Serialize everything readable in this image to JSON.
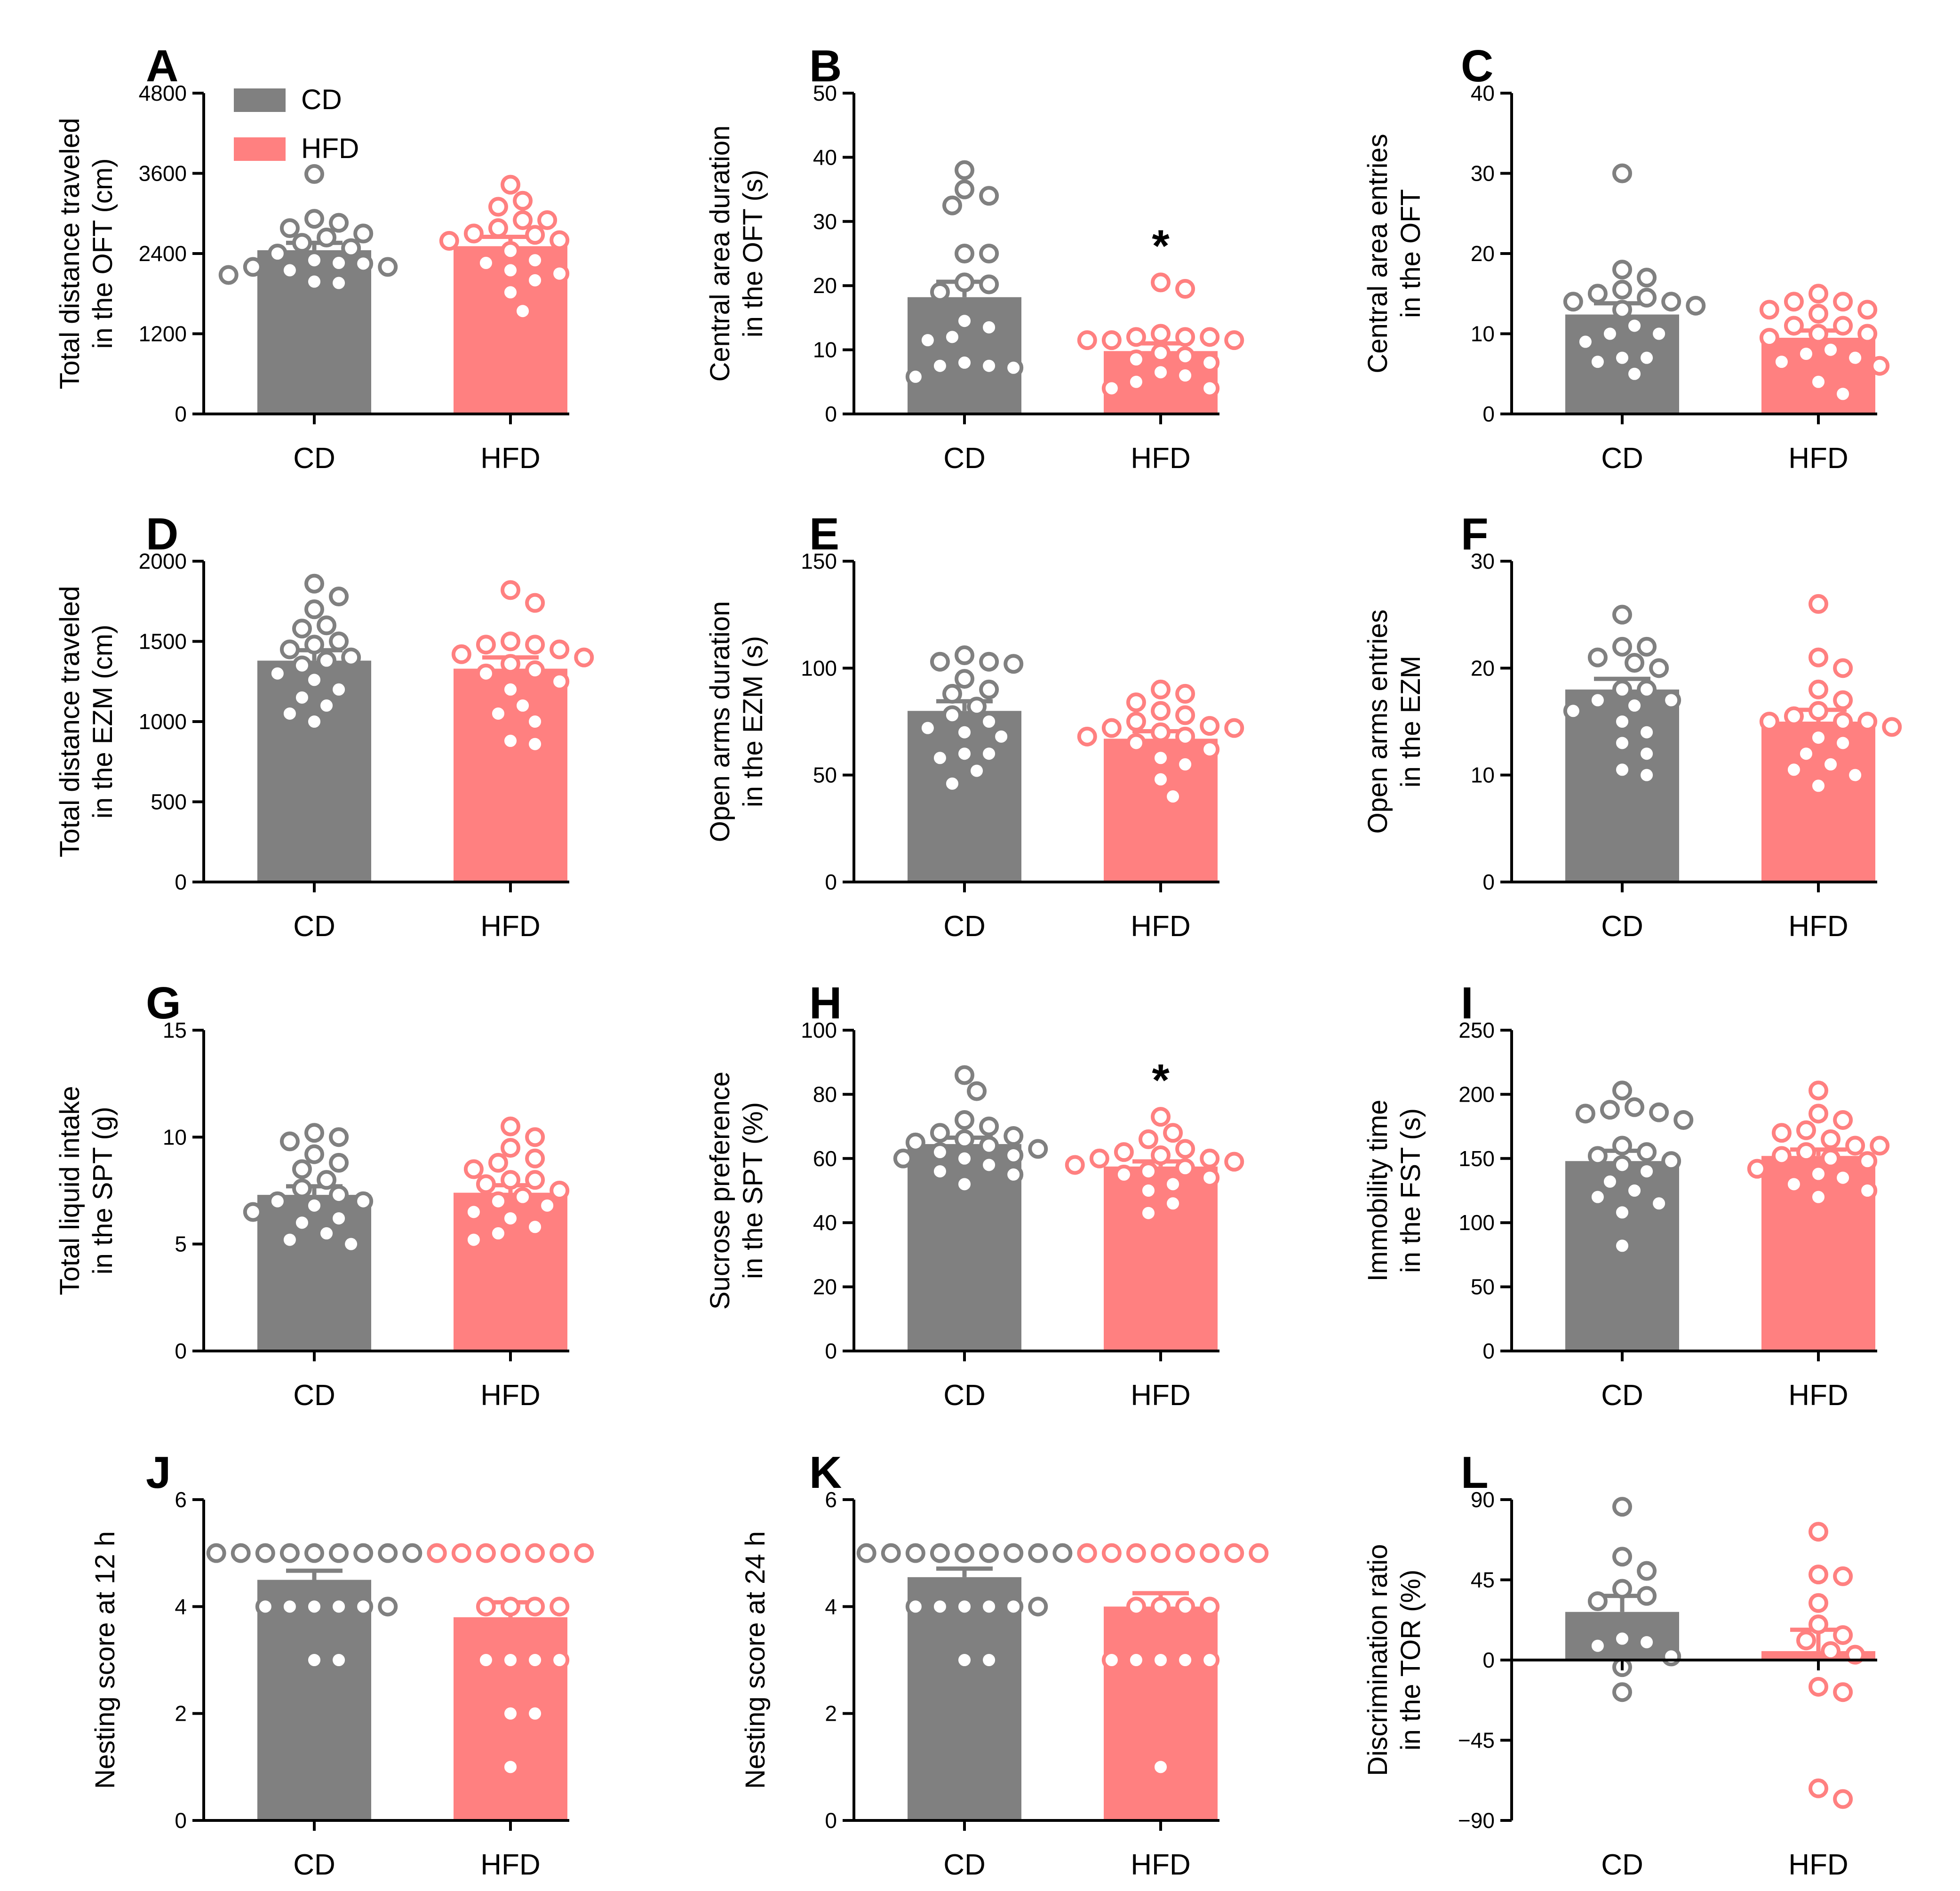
{
  "colors": {
    "cd": "#808080",
    "hfd": "#FF8080",
    "axis": "#000000"
  },
  "legend": [
    {
      "label": "CD",
      "color": "#808080"
    },
    {
      "label": "HFD",
      "color": "#FF8080"
    }
  ],
  "chart_data": [
    {
      "panel": "A",
      "type": "bar",
      "ylabel": [
        "Total distance traveled",
        "in the OFT (cm)"
      ],
      "ylim": [
        0,
        4800
      ],
      "ticks": [
        0,
        1200,
        2400,
        3600,
        4800
      ],
      "categories": [
        "CD",
        "HFD"
      ],
      "series": [
        {
          "name": "CD",
          "mean": 2450,
          "sem": 110,
          "points": [
            3590,
            2920,
            2780,
            2860,
            2640,
            2480,
            2560,
            2700,
            2400,
            2300,
            2200,
            2260,
            2150,
            2250,
            2080,
            1960,
            1980,
            2200
          ]
        },
        {
          "name": "HFD",
          "mean": 2510,
          "sem": 140,
          "points": [
            3430,
            3100,
            3190,
            2900,
            2780,
            2900,
            2600,
            2700,
            2590,
            2440,
            2300,
            2260,
            2150,
            2100,
            2000,
            1820,
            1540,
            2680
          ]
        }
      ],
      "significance": []
    },
    {
      "panel": "B",
      "type": "bar",
      "ylabel": [
        "Central area duration",
        "in the OFT (s)"
      ],
      "ylim": [
        0,
        50
      ],
      "ticks": [
        0,
        10,
        20,
        30,
        40,
        50
      ],
      "categories": [
        "CD",
        "HFD"
      ],
      "series": [
        {
          "name": "CD",
          "mean": 18.2,
          "sem": 2.4,
          "points": [
            38,
            34,
            35,
            32.5,
            25,
            25,
            20.5,
            20.2,
            19,
            14.5,
            13.5,
            12,
            11.5,
            8,
            7.5,
            7.2,
            7.5,
            5.8
          ]
        },
        {
          "name": "HFD",
          "mean": 9.8,
          "sem": 1.2,
          "points": [
            20.5,
            19.5,
            12,
            12,
            11.5,
            11.5,
            12,
            11.5,
            12.5,
            9.5,
            9,
            8.5,
            8,
            6.5,
            6,
            5,
            4,
            4
          ]
        }
      ],
      "significance": [
        "HFD"
      ]
    },
    {
      "panel": "C",
      "type": "bar",
      "ylabel": [
        "Central area entries",
        "in the OFT"
      ],
      "ylim": [
        0,
        40
      ],
      "ticks": [
        0,
        10,
        20,
        30,
        40
      ],
      "categories": [
        "CD",
        "HFD"
      ],
      "series": [
        {
          "name": "CD",
          "mean": 12.4,
          "sem": 1.4,
          "points": [
            30,
            18,
            17,
            15.5,
            15,
            14.5,
            14,
            14,
            13.5,
            13,
            11,
            10,
            10,
            9,
            7,
            7,
            6.5,
            5
          ]
        },
        {
          "name": "HFD",
          "mean": 9.5,
          "sem": 0.9,
          "points": [
            15,
            14,
            14,
            13,
            13,
            12.5,
            11,
            11,
            10,
            10,
            9.5,
            8,
            7.5,
            7,
            6.5,
            6,
            4,
            2.5
          ]
        }
      ],
      "significance": []
    },
    {
      "panel": "D",
      "type": "bar",
      "ylabel": [
        "Total distance traveled",
        "in the EZM (cm)"
      ],
      "ylim": [
        0,
        2000
      ],
      "ticks": [
        0,
        500,
        1000,
        1500,
        2000
      ],
      "categories": [
        "CD",
        "HFD"
      ],
      "series": [
        {
          "name": "CD",
          "mean": 1380,
          "sem": 65,
          "points": [
            1860,
            1780,
            1700,
            1600,
            1580,
            1500,
            1450,
            1480,
            1400,
            1380,
            1350,
            1300,
            1260,
            1200,
            1150,
            1050,
            1000,
            1100
          ]
        },
        {
          "name": "HFD",
          "mean": 1330,
          "sem": 70,
          "points": [
            1820,
            1740,
            1500,
            1480,
            1450,
            1420,
            1400,
            1480,
            1360,
            1320,
            1300,
            1250,
            1200,
            1100,
            1050,
            1000,
            880,
            860
          ]
        }
      ],
      "significance": []
    },
    {
      "panel": "E",
      "type": "bar",
      "ylabel": [
        "Open arms duration",
        "in the EZM (s)"
      ],
      "ylim": [
        0,
        150
      ],
      "ticks": [
        0,
        50,
        100,
        150
      ],
      "categories": [
        "CD",
        "HFD"
      ],
      "series": [
        {
          "name": "CD",
          "mean": 80,
          "sem": 4.5,
          "points": [
            106,
            103,
            103,
            102,
            95,
            90,
            88,
            82,
            78,
            75,
            72,
            70,
            68,
            60,
            58,
            52,
            46,
            60
          ]
        },
        {
          "name": "HFD",
          "mean": 67,
          "sem": 3.5,
          "points": [
            90,
            88,
            84,
            80,
            78,
            75,
            73,
            72,
            72,
            70,
            68,
            68,
            65,
            62,
            58,
            55,
            48,
            40
          ]
        }
      ],
      "significance": []
    },
    {
      "panel": "F",
      "type": "bar",
      "ylabel": [
        "Open arms entries",
        "in the EZM"
      ],
      "ylim": [
        0,
        30
      ],
      "ticks": [
        0,
        10,
        20,
        30
      ],
      "categories": [
        "CD",
        "HFD"
      ],
      "series": [
        {
          "name": "CD",
          "mean": 18,
          "sem": 1.0,
          "points": [
            25,
            22,
            22,
            21,
            20.5,
            20,
            18,
            18,
            17,
            17,
            16.5,
            16,
            15,
            14,
            12,
            10.5,
            10,
            13
          ]
        },
        {
          "name": "HFD",
          "mean": 15,
          "sem": 1.1,
          "points": [
            26,
            21,
            20,
            18,
            17,
            16,
            15.5,
            15,
            15,
            15,
            14.5,
            13,
            12,
            11,
            10.5,
            10,
            9,
            13.5
          ]
        }
      ],
      "significance": []
    },
    {
      "panel": "G",
      "type": "bar",
      "ylabel": [
        "Total liquid intake",
        "in the SPT (g)"
      ],
      "ylim": [
        0,
        15
      ],
      "ticks": [
        0,
        5,
        10,
        15
      ],
      "categories": [
        "CD",
        "HFD"
      ],
      "series": [
        {
          "name": "CD",
          "mean": 7.3,
          "sem": 0.4,
          "points": [
            10.2,
            10,
            9.8,
            9.2,
            8.5,
            8,
            7.6,
            7.3,
            7,
            7,
            6.8,
            6.5,
            6.2,
            6,
            5.5,
            5.2,
            5,
            8.8
          ]
        },
        {
          "name": "HFD",
          "mean": 7.4,
          "sem": 0.35,
          "points": [
            10.5,
            10,
            9.5,
            9,
            8.8,
            8.5,
            8,
            8,
            7.8,
            7.5,
            7.2,
            7,
            6.8,
            6.5,
            6.2,
            5.8,
            5.5,
            5.2
          ]
        }
      ],
      "significance": []
    },
    {
      "panel": "H",
      "type": "bar",
      "ylabel": [
        "Sucrose preference",
        "in the SPT (%)"
      ],
      "ylim": [
        0,
        100
      ],
      "ticks": [
        0,
        20,
        40,
        60,
        80,
        100
      ],
      "categories": [
        "CD",
        "HFD"
      ],
      "series": [
        {
          "name": "CD",
          "mean": 64.5,
          "sem": 2.0,
          "points": [
            86,
            81,
            72,
            70,
            68,
            66,
            65,
            64,
            63,
            62,
            61,
            60,
            60,
            58,
            56,
            55,
            52,
            67
          ]
        },
        {
          "name": "HFD",
          "mean": 57.5,
          "sem": 1.6,
          "points": [
            73,
            68,
            66,
            63,
            62,
            61,
            60,
            60,
            59,
            58,
            57,
            56,
            55,
            54,
            52,
            50,
            46,
            43
          ]
        }
      ],
      "significance": [
        "HFD"
      ]
    },
    {
      "panel": "I",
      "type": "bar",
      "ylabel": [
        "Immobility time",
        "in the FST (s)"
      ],
      "ylim": [
        0,
        250
      ],
      "ticks": [
        0,
        50,
        100,
        150,
        200,
        250
      ],
      "categories": [
        "CD",
        "HFD"
      ],
      "series": [
        {
          "name": "CD",
          "mean": 148,
          "sem": 8,
          "points": [
            203,
            190,
            188,
            186,
            185,
            180,
            160,
            155,
            152,
            148,
            140,
            132,
            125,
            120,
            115,
            108,
            82,
            145
          ]
        },
        {
          "name": "HFD",
          "mean": 152,
          "sem": 5,
          "points": [
            203,
            185,
            180,
            172,
            170,
            165,
            160,
            155,
            152,
            150,
            148,
            142,
            138,
            135,
            130,
            125,
            120,
            160
          ]
        }
      ],
      "significance": []
    },
    {
      "panel": "J",
      "type": "bar",
      "ylabel": [
        "Nesting score at 12 h"
      ],
      "ylim": [
        0,
        6
      ],
      "ticks": [
        0,
        2,
        4,
        6
      ],
      "categories": [
        "CD",
        "HFD"
      ],
      "series": [
        {
          "name": "CD",
          "mean": 4.5,
          "sem": 0.17,
          "points": [
            5,
            5,
            5,
            5,
            5,
            5,
            5,
            5,
            5,
            5,
            4,
            4,
            4,
            4,
            4,
            4,
            3,
            3
          ]
        },
        {
          "name": "HFD",
          "mean": 3.8,
          "sem": 0.28,
          "points": [
            5,
            5,
            5,
            5,
            5,
            5,
            5,
            4,
            4,
            4,
            4,
            3,
            3,
            3,
            3,
            2,
            2,
            1
          ]
        }
      ],
      "significance": []
    },
    {
      "panel": "K",
      "type": "bar",
      "ylabel": [
        "Nesting score at 24 h"
      ],
      "ylim": [
        0,
        6
      ],
      "ticks": [
        0,
        2,
        4,
        6
      ],
      "categories": [
        "CD",
        "HFD"
      ],
      "series": [
        {
          "name": "CD",
          "mean": 4.55,
          "sem": 0.16,
          "points": [
            5,
            5,
            5,
            5,
            5,
            5,
            5,
            5,
            5,
            5,
            4,
            4,
            4,
            4,
            4,
            4,
            3,
            3
          ]
        },
        {
          "name": "HFD",
          "mean": 4.0,
          "sem": 0.25,
          "points": [
            5,
            5,
            5,
            5,
            5,
            5,
            5,
            5,
            4,
            4,
            4,
            4,
            3,
            3,
            3,
            3,
            3,
            1
          ]
        }
      ],
      "significance": []
    },
    {
      "panel": "L",
      "type": "bar",
      "ylabel": [
        "Discrimination ratio",
        "in the TOR (%)"
      ],
      "ylim": [
        -90,
        90
      ],
      "ticks": [
        -90,
        -45,
        0,
        45,
        90
      ],
      "categories": [
        "CD",
        "HFD"
      ],
      "series": [
        {
          "name": "CD",
          "mean": 27,
          "sem": 9,
          "points": [
            86,
            58,
            50,
            40,
            36,
            33,
            12,
            10,
            8,
            2,
            -4,
            -18
          ]
        },
        {
          "name": "HFD",
          "mean": 5,
          "sem": 12,
          "points": [
            72,
            48,
            47,
            32,
            20,
            14,
            11,
            5,
            3,
            -15,
            -18,
            -72,
            -78
          ]
        }
      ],
      "significance": []
    }
  ]
}
